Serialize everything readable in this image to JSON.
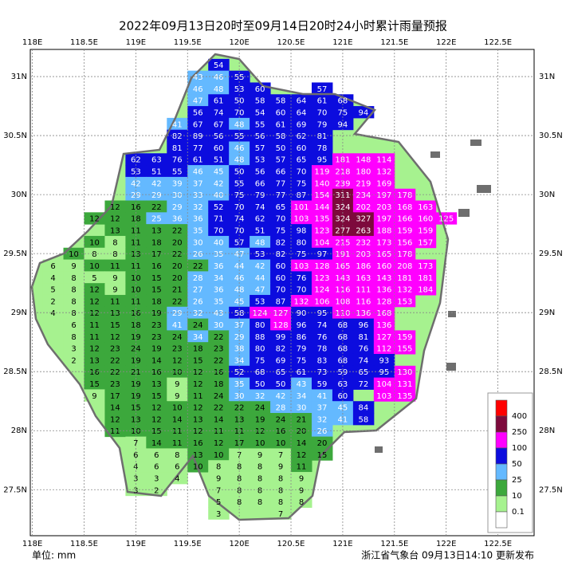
{
  "map": {
    "title": "2022年09月13日20时至09月14日20时24小时累计雨量预报",
    "unit": "单位: mm",
    "source": "浙江省气象台 09月13日14:10 更新发布",
    "xlim": [
      117.98,
      122.85
    ],
    "ylim": [
      27.11,
      31.23
    ],
    "xticks": [
      {
        "value": 118,
        "label": "118E"
      },
      {
        "value": 118.5,
        "label": "118.5E"
      },
      {
        "value": 119,
        "label": "119E"
      },
      {
        "value": 119.5,
        "label": "119.5E"
      },
      {
        "value": 120,
        "label": "120E"
      },
      {
        "value": 120.5,
        "label": "120.5E"
      },
      {
        "value": 121,
        "label": "121E"
      },
      {
        "value": 121.5,
        "label": "121.5E"
      },
      {
        "value": 122,
        "label": "122E"
      },
      {
        "value": 122.5,
        "label": "122.5E"
      }
    ],
    "yticks": [
      {
        "value": 31,
        "label": "31N"
      },
      {
        "value": 30.5,
        "label": "30.5N"
      },
      {
        "value": 30,
        "label": "30N"
      },
      {
        "value": 29.5,
        "label": "29.5N"
      },
      {
        "value": 29,
        "label": "29N"
      },
      {
        "value": 28.5,
        "label": "28.5N"
      },
      {
        "value": 28,
        "label": "28N"
      },
      {
        "value": 27.5,
        "label": "27.5N"
      }
    ],
    "grid": true,
    "legend": {
      "levels": [
        400,
        250,
        100,
        50,
        25,
        10,
        0.1
      ],
      "colors": [
        "#ff0000",
        "#7d0a3c",
        "#ff00ff",
        "#0c0cde",
        "#64b9ff",
        "#3ca83c",
        "#a6f28f",
        "#ffffff"
      ]
    },
    "lons": [
      118.2,
      118.4,
      118.6,
      118.8,
      119.0,
      119.2,
      119.4,
      119.6,
      119.8,
      120.0,
      120.2,
      120.4,
      120.6,
      120.8,
      121.0,
      121.2,
      121.4,
      121.6,
      121.8,
      122.0
    ],
    "lats": [
      31.1,
      31.0,
      30.9,
      30.8,
      30.7,
      30.6,
      30.5,
      30.4,
      30.3,
      30.2,
      30.1,
      30.0,
      29.9,
      29.8,
      29.7,
      29.6,
      29.5,
      29.4,
      29.3,
      29.2,
      29.1,
      29.0,
      28.9,
      28.8,
      28.7,
      28.6,
      28.5,
      28.4,
      28.3,
      28.2,
      28.1,
      28.0,
      27.9,
      27.8,
      27.7,
      27.6,
      27.5,
      27.4,
      27.3
    ],
    "values": [
      [
        null,
        null,
        null,
        null,
        null,
        null,
        null,
        null,
        54,
        null,
        null,
        null,
        null,
        null,
        null,
        null,
        null,
        null,
        null,
        null
      ],
      [
        null,
        null,
        null,
        null,
        null,
        null,
        null,
        43,
        46,
        55,
        null,
        null,
        null,
        null,
        null,
        null,
        null,
        null,
        null,
        null
      ],
      [
        null,
        null,
        null,
        null,
        null,
        null,
        null,
        46,
        48,
        53,
        60,
        null,
        null,
        57,
        null,
        null,
        null,
        null,
        null,
        null
      ],
      [
        null,
        null,
        null,
        null,
        null,
        null,
        null,
        47,
        61,
        50,
        58,
        58,
        64,
        61,
        68,
        null,
        null,
        null,
        null,
        null
      ],
      [
        null,
        null,
        null,
        null,
        null,
        null,
        null,
        56,
        74,
        70,
        54,
        60,
        64,
        70,
        75,
        94,
        null,
        null,
        null,
        null
      ],
      [
        null,
        null,
        null,
        null,
        null,
        null,
        41,
        67,
        67,
        48,
        55,
        61,
        69,
        79,
        94,
        null,
        null,
        null,
        null,
        null
      ],
      [
        null,
        null,
        null,
        null,
        null,
        null,
        82,
        89,
        56,
        55,
        56,
        58,
        62,
        81,
        null,
        null,
        null,
        null,
        null,
        null
      ],
      [
        null,
        null,
        null,
        null,
        null,
        null,
        81,
        77,
        60,
        46,
        57,
        50,
        60,
        78,
        null,
        null,
        null,
        null,
        null,
        null
      ],
      [
        null,
        null,
        null,
        null,
        62,
        63,
        76,
        61,
        51,
        48,
        53,
        57,
        65,
        95,
        181,
        148,
        114,
        null,
        null,
        null
      ],
      [
        null,
        null,
        null,
        null,
        53,
        51,
        55,
        46,
        45,
        50,
        56,
        66,
        70,
        119,
        218,
        180,
        132,
        null,
        null,
        null
      ],
      [
        null,
        null,
        null,
        null,
        42,
        42,
        39,
        37,
        42,
        55,
        66,
        77,
        75,
        140,
        239,
        219,
        169,
        null,
        null,
        null
      ],
      [
        null,
        null,
        null,
        null,
        29,
        29,
        30,
        33,
        40,
        75,
        79,
        77,
        87,
        154,
        311,
        234,
        197,
        178,
        null,
        null
      ],
      [
        null,
        null,
        null,
        12,
        16,
        22,
        29,
        32,
        52,
        70,
        74,
        65,
        101,
        144,
        324,
        202,
        203,
        168,
        163,
        null
      ],
      [
        null,
        null,
        12,
        12,
        18,
        25,
        36,
        36,
        71,
        74,
        62,
        70,
        103,
        135,
        324,
        327,
        197,
        166,
        160,
        125
      ],
      [
        null,
        null,
        null,
        13,
        11,
        13,
        22,
        35,
        70,
        70,
        51,
        75,
        98,
        123,
        277,
        263,
        188,
        159,
        159,
        null
      ],
      [
        null,
        null,
        10,
        8,
        11,
        18,
        20,
        30,
        40,
        57,
        48,
        82,
        80,
        104,
        215,
        232,
        173,
        156,
        157,
        null
      ],
      [
        null,
        10,
        8,
        8,
        13,
        17,
        22,
        26,
        35,
        47,
        53,
        82,
        75,
        97,
        191,
        203,
        165,
        178,
        null,
        null
      ],
      [
        6,
        9,
        10,
        11,
        11,
        16,
        20,
        22,
        36,
        44,
        42,
        60,
        103,
        128,
        165,
        186,
        160,
        208,
        173,
        null
      ],
      [
        4,
        8,
        5,
        9,
        10,
        15,
        20,
        28,
        34,
        46,
        44,
        60,
        76,
        123,
        143,
        163,
        143,
        181,
        181,
        null
      ],
      [
        5,
        8,
        12,
        9,
        10,
        15,
        21,
        27,
        36,
        48,
        47,
        70,
        70,
        124,
        116,
        111,
        136,
        132,
        184,
        null
      ],
      [
        2,
        8,
        12,
        11,
        11,
        18,
        22,
        26,
        35,
        45,
        53,
        87,
        132,
        106,
        108,
        116,
        128,
        153,
        null,
        null
      ],
      [
        4,
        8,
        12,
        13,
        16,
        19,
        29,
        32,
        43,
        58,
        124,
        127,
        90,
        95,
        110,
        136,
        168,
        null,
        null,
        null
      ],
      [
        null,
        6,
        11,
        15,
        18,
        23,
        41,
        24,
        30,
        37,
        80,
        128,
        96,
        74,
        68,
        96,
        136,
        null,
        null,
        null
      ],
      [
        null,
        8,
        11,
        12,
        19,
        23,
        24,
        34,
        22,
        29,
        88,
        99,
        86,
        76,
        68,
        81,
        127,
        159,
        null,
        null
      ],
      [
        null,
        3,
        12,
        23,
        24,
        19,
        23,
        18,
        23,
        38,
        80,
        82,
        79,
        78,
        68,
        76,
        112,
        155,
        null,
        null
      ],
      [
        null,
        2,
        13,
        22,
        19,
        14,
        12,
        15,
        22,
        34,
        75,
        69,
        75,
        83,
        68,
        74,
        93,
        null,
        null,
        null
      ],
      [
        null,
        null,
        16,
        22,
        21,
        16,
        10,
        12,
        16,
        52,
        68,
        65,
        61,
        73,
        59,
        65,
        95,
        130,
        null,
        null
      ],
      [
        null,
        null,
        15,
        23,
        19,
        13,
        9,
        12,
        18,
        35,
        50,
        50,
        43,
        59,
        63,
        72,
        104,
        131,
        null,
        null
      ],
      [
        null,
        null,
        9,
        17,
        19,
        15,
        9,
        11,
        24,
        30,
        32,
        42,
        34,
        41,
        60,
        null,
        103,
        135,
        null,
        null
      ],
      [
        null,
        null,
        null,
        14,
        15,
        12,
        10,
        12,
        22,
        22,
        24,
        28,
        30,
        37,
        45,
        84,
        null,
        null,
        null,
        null
      ],
      [
        null,
        null,
        null,
        12,
        13,
        12,
        14,
        13,
        14,
        13,
        19,
        24,
        21,
        32,
        41,
        58,
        null,
        null,
        null,
        null
      ],
      [
        null,
        null,
        null,
        11,
        10,
        15,
        11,
        12,
        11,
        11,
        12,
        16,
        20,
        26,
        null,
        null,
        null,
        null,
        null,
        null
      ],
      [
        null,
        null,
        null,
        null,
        7,
        14,
        11,
        16,
        12,
        17,
        10,
        10,
        14,
        20,
        null,
        null,
        null,
        null,
        null,
        null
      ],
      [
        null,
        null,
        null,
        null,
        6,
        6,
        8,
        13,
        10,
        7,
        9,
        7,
        12,
        15,
        null,
        null,
        null,
        null,
        null,
        null
      ],
      [
        null,
        null,
        null,
        null,
        4,
        6,
        6,
        10,
        8,
        8,
        8,
        9,
        11,
        null,
        null,
        null,
        null,
        null,
        null,
        null
      ],
      [
        null,
        null,
        null,
        null,
        3,
        3,
        4,
        null,
        9,
        8,
        8,
        8,
        9,
        null,
        null,
        null,
        null,
        null,
        null,
        null
      ],
      [
        null,
        null,
        null,
        null,
        3,
        2,
        null,
        null,
        7,
        8,
        8,
        8,
        9,
        null,
        null,
        null,
        null,
        null,
        null,
        null
      ],
      [
        null,
        null,
        null,
        null,
        null,
        null,
        null,
        null,
        5,
        8,
        8,
        8,
        8,
        null,
        null,
        null,
        null,
        null,
        null,
        null
      ],
      [
        null,
        null,
        null,
        null,
        null,
        null,
        null,
        null,
        3,
        null,
        null,
        7,
        null,
        null,
        null,
        null,
        null,
        null,
        null,
        null
      ]
    ]
  }
}
